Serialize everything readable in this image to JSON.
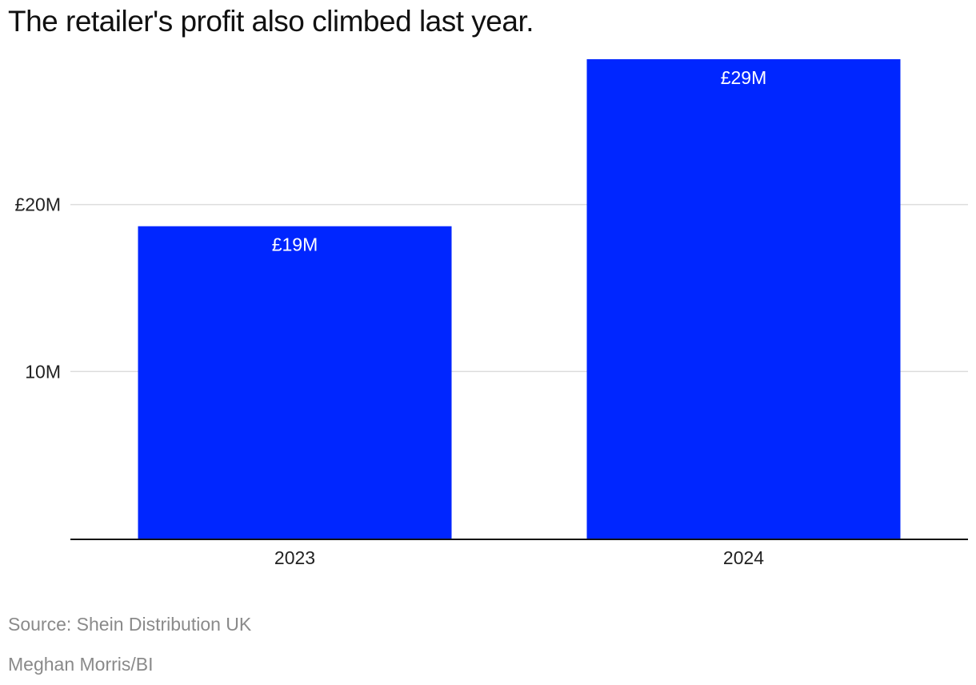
{
  "chart_data": {
    "type": "bar",
    "title": "The retailer's profit also climbed last year.",
    "categories": [
      "2023",
      "2024"
    ],
    "values": [
      18.7,
      28.7
    ],
    "data_labels": [
      "£19M",
      "£29M"
    ],
    "ylim": [
      0,
      28.7
    ],
    "yticks": [
      {
        "value": 10,
        "label": "10M"
      },
      {
        "value": 20,
        "label": "£20M"
      }
    ],
    "grid": true,
    "bar_color": "#0026ff",
    "xlabel": "",
    "ylabel": ""
  },
  "footer": {
    "source": "Source: Shein Distribution UK",
    "credit": "Meghan Morris/BI"
  }
}
